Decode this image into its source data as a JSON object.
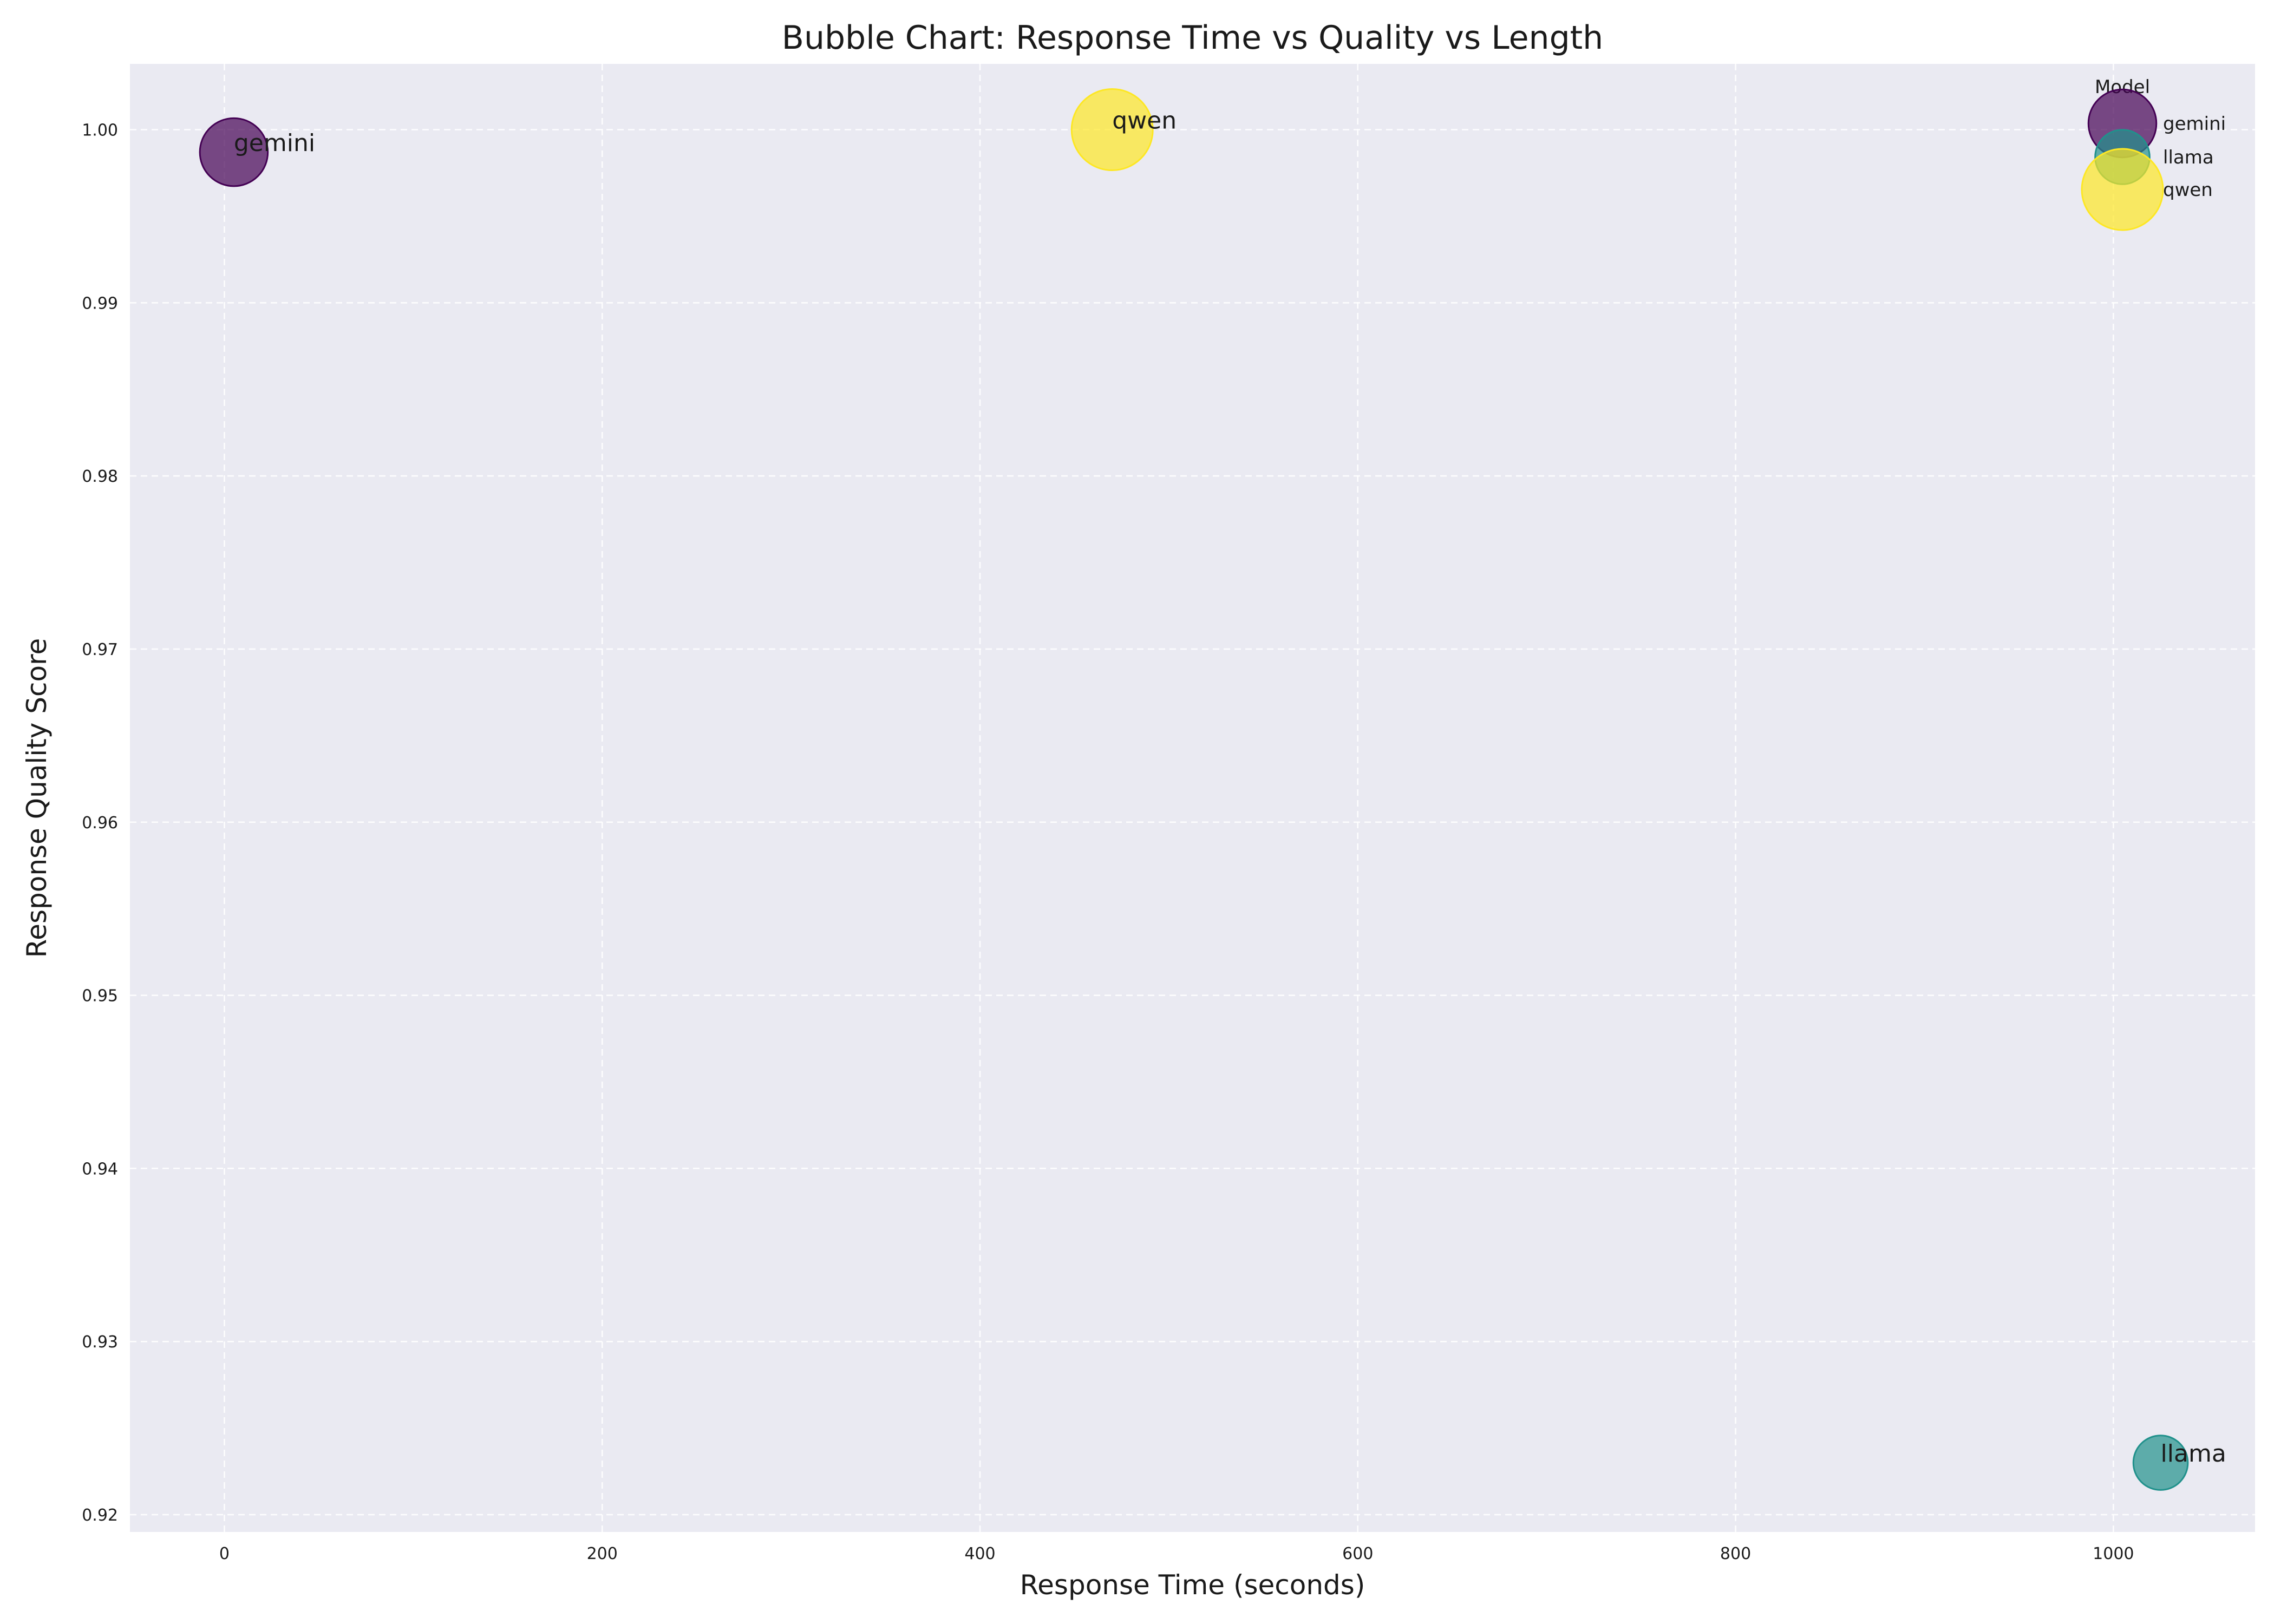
{
  "chart_data": {
    "type": "scatter",
    "subtype": "bubble",
    "title": "Bubble Chart: Response Time vs Quality vs Length",
    "xlabel": "Response Time (seconds)",
    "ylabel": "Response Quality Score",
    "xlim": [
      -50,
      1075
    ],
    "ylim": [
      0.919,
      1.0038
    ],
    "xticks": [
      0,
      200,
      400,
      600,
      800,
      1000
    ],
    "yticks": [
      0.92,
      0.93,
      0.94,
      0.95,
      0.96,
      0.97,
      0.98,
      0.99,
      1.0
    ],
    "ytick_labels": [
      "0.92",
      "0.93",
      "0.94",
      "0.95",
      "0.96",
      "0.97",
      "0.98",
      "0.99",
      "1.00"
    ],
    "grid": true,
    "legend": {
      "title": "Model",
      "placement": "top-right"
    },
    "background_color": "#eaeaf2",
    "series": [
      {
        "name": "gemini",
        "x": 5,
        "y": 0.9987,
        "size": 0.7,
        "color": "#440154"
      },
      {
        "name": "llama",
        "x": 1025,
        "y": 0.923,
        "size": 0.45,
        "color": "#21918c"
      },
      {
        "name": "qwen",
        "x": 470,
        "y": 1.0,
        "size": 1.0,
        "color": "#fde725"
      }
    ]
  }
}
